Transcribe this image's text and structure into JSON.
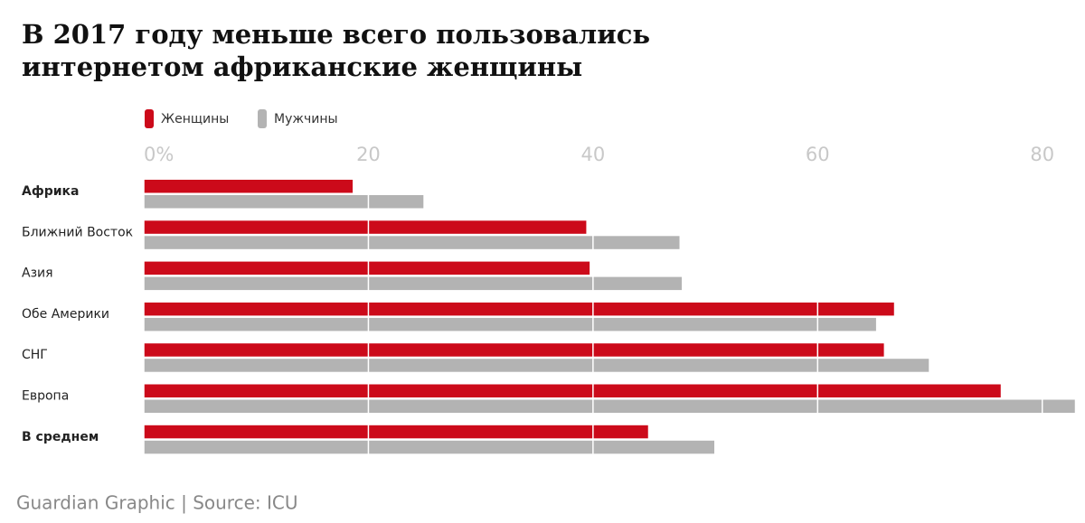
{
  "chart_data": {
    "type": "hbar",
    "title": "В 2017 году меньше всего пользовались интернетом африканские женщины",
    "source": "Guardian Graphic | Source: ICU",
    "categories": [
      "Африка",
      "Ближний Восток",
      "Азия",
      "Обе Америки",
      "СНГ",
      "Европа",
      "В среднем"
    ],
    "bold_category_indices": [
      0,
      6
    ],
    "series": [
      {
        "name": "Женщины",
        "color": "#cc0a1a",
        "values": [
          18.6,
          39.4,
          39.7,
          66.8,
          65.9,
          76.3,
          44.9
        ]
      },
      {
        "name": "Мужчины",
        "color": "#b3b3b3",
        "values": [
          24.9,
          47.7,
          47.9,
          65.2,
          69.9,
          82.9,
          50.8
        ]
      }
    ],
    "xlim": [
      0,
      83
    ],
    "xticks": [
      {
        "value": 0,
        "label": "0%"
      },
      20,
      40,
      60,
      80
    ],
    "grid": true,
    "legend": "top-left"
  }
}
